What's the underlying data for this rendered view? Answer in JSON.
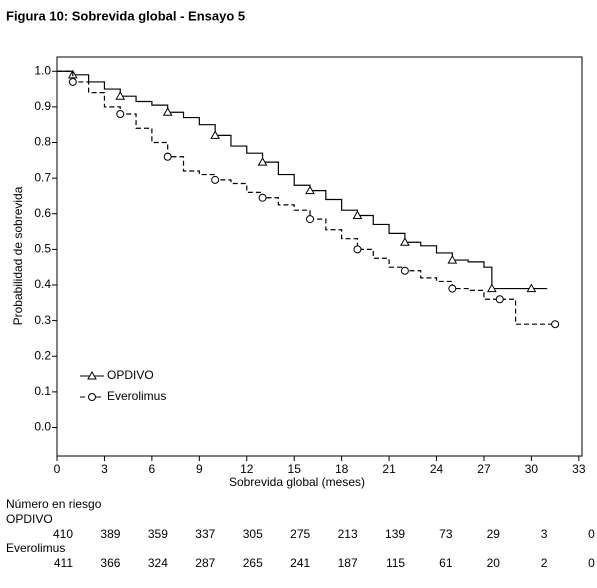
{
  "chart_data": {
    "type": "km",
    "title": "Figura 10: Sobrevida global - Ensayo 5",
    "xlabel": "Sobrevida global (meses)",
    "ylabel": "Probabilidad de sobrevida",
    "xlim": [
      0,
      33.2
    ],
    "ylim": [
      -0.08,
      1.04
    ],
    "xticks": [
      0,
      3,
      6,
      9,
      12,
      15,
      18,
      21,
      24,
      27,
      30,
      33
    ],
    "yticks": [
      {
        "value": 0,
        "label": "0.0"
      },
      0.1,
      0.2,
      0.3,
      0.4,
      0.5,
      0.6,
      0.7,
      0.8,
      0.9,
      {
        "value": 1,
        "label": "1.0"
      }
    ],
    "series": [
      {
        "name": "OPDIVO",
        "color": "#000000",
        "dash": false,
        "marker": "triangle",
        "x": [
          0,
          1,
          2,
          3,
          4,
          5,
          6,
          7,
          8,
          9,
          10,
          11,
          12,
          13,
          14,
          15,
          16,
          17,
          18,
          19,
          20,
          21,
          22,
          23,
          24,
          25,
          26,
          27,
          27.5,
          28,
          29,
          30,
          31
        ],
        "values": [
          1.0,
          0.99,
          0.97,
          0.95,
          0.93,
          0.915,
          0.905,
          0.885,
          0.87,
          0.85,
          0.82,
          0.79,
          0.77,
          0.745,
          0.71,
          0.68,
          0.665,
          0.64,
          0.61,
          0.595,
          0.57,
          0.545,
          0.52,
          0.51,
          0.49,
          0.47,
          0.465,
          0.45,
          0.39,
          0.39,
          0.39,
          0.39,
          0.39
        ]
      },
      {
        "name": "Everolimus",
        "color": "#000000",
        "dash": true,
        "marker": "circle",
        "x": [
          0,
          1,
          2,
          3,
          4,
          5,
          6,
          7,
          8,
          9,
          10,
          11,
          12,
          13,
          14,
          15,
          16,
          17,
          18,
          19,
          20,
          21,
          22,
          23,
          24,
          25,
          26,
          27,
          28,
          29,
          30,
          31.5
        ],
        "values": [
          1.0,
          0.97,
          0.94,
          0.9,
          0.88,
          0.84,
          0.8,
          0.76,
          0.72,
          0.71,
          0.695,
          0.685,
          0.66,
          0.645,
          0.625,
          0.61,
          0.585,
          0.555,
          0.53,
          0.5,
          0.475,
          0.45,
          0.44,
          0.42,
          0.41,
          0.39,
          0.385,
          0.36,
          0.36,
          0.29,
          0.29,
          0.29
        ]
      }
    ],
    "risk_table": {
      "title": "Número en riesgo",
      "rows": [
        [
          410,
          389,
          359,
          337,
          305,
          275,
          213,
          139,
          73,
          29,
          3,
          0
        ],
        [
          411,
          366,
          324,
          287,
          265,
          241,
          187,
          115,
          61,
          20,
          2,
          0
        ]
      ]
    }
  }
}
